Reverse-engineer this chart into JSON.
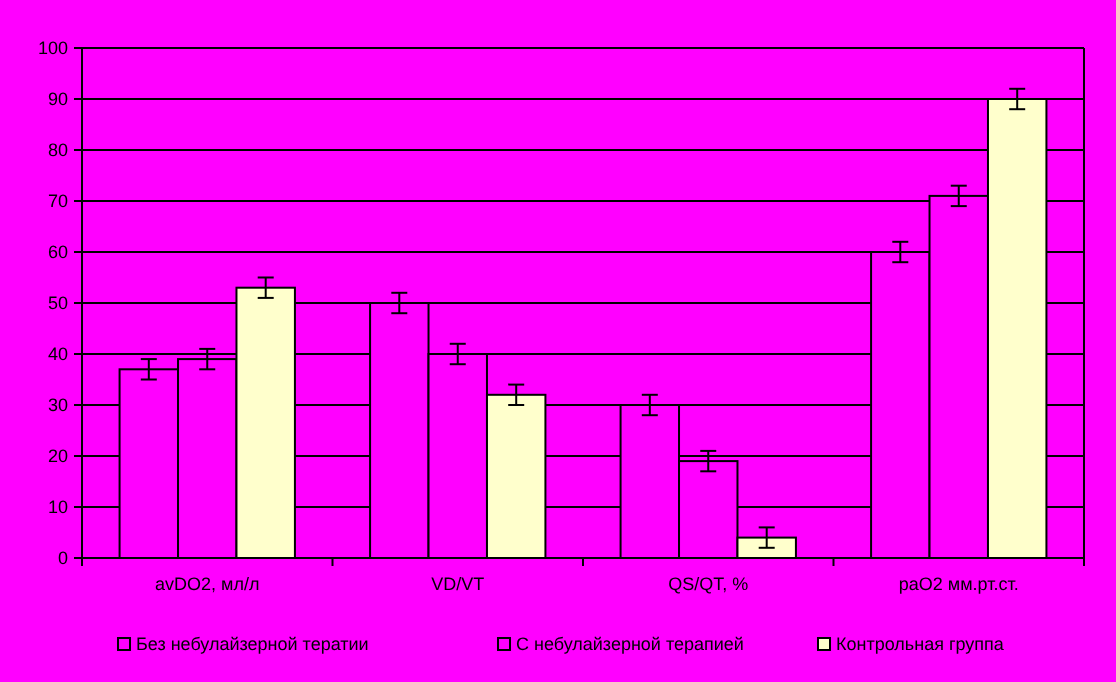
{
  "chart_data": {
    "type": "bar",
    "categories": [
      "avDO2, мл/л",
      "VD/VT",
      "QS/QT, %",
      "paO2  мм.рт.ст."
    ],
    "series": [
      {
        "name": "Без небулайзерной тератии",
        "color": "#ff00ff",
        "values": [
          37,
          50,
          30,
          60
        ],
        "errors": [
          2,
          2,
          2,
          2
        ]
      },
      {
        "name": "С небулайзерной терапией",
        "color": "#ff00ff",
        "values": [
          39,
          40,
          19,
          71
        ],
        "errors": [
          2,
          2,
          2,
          2
        ]
      },
      {
        "name": "Контрольная группа",
        "color": "#ffffcc",
        "values": [
          53,
          32,
          4,
          90
        ],
        "errors": [
          2,
          2,
          2,
          2
        ]
      }
    ],
    "ylim": [
      0,
      100
    ],
    "yticks": [
      0,
      10,
      20,
      30,
      40,
      50,
      60,
      70,
      80,
      90,
      100
    ],
    "grid": "y",
    "legend": "bottom"
  }
}
